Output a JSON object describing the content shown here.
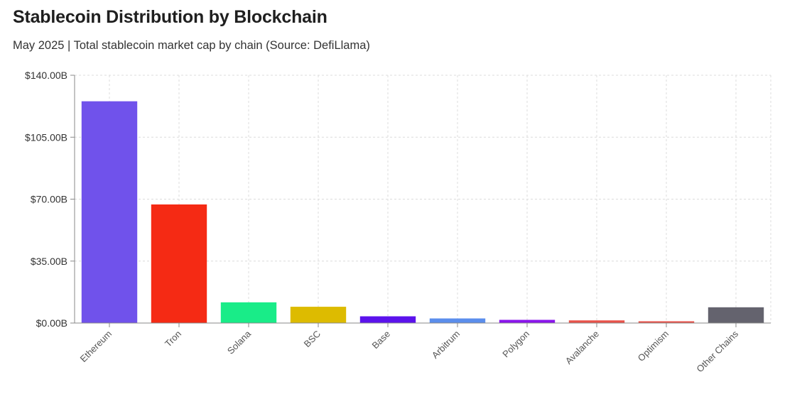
{
  "chart_data": {
    "type": "bar",
    "title": "Stablecoin Distribution by Blockchain",
    "subtitle": "May 2025 | Total stablecoin market cap by chain (Source: DefiLlama)",
    "xlabel": "",
    "ylabel": "",
    "ylim": [
      0,
      140
    ],
    "yticks": [
      0,
      35,
      70,
      105,
      140
    ],
    "ytick_labels": [
      "$0.00B",
      "$35.00B",
      "$70.00B",
      "$105.00B",
      "$140.00B"
    ],
    "grid": true,
    "categories": [
      "Ethereum",
      "Tron",
      "Solana",
      "BSC",
      "Base",
      "Arbitrum",
      "Polygon",
      "Avalanche",
      "Optimism",
      "Other Chains"
    ],
    "values": [
      125.3,
      67.0,
      11.7,
      9.2,
      3.8,
      2.6,
      1.8,
      1.5,
      1.0,
      8.9
    ],
    "colors": [
      "#7052eb",
      "#f52a14",
      "#19ec88",
      "#ddbb00",
      "#5b12ec",
      "#5b8eec",
      "#8a14ec",
      "#e8524a",
      "#e8524a",
      "#64636e"
    ]
  }
}
